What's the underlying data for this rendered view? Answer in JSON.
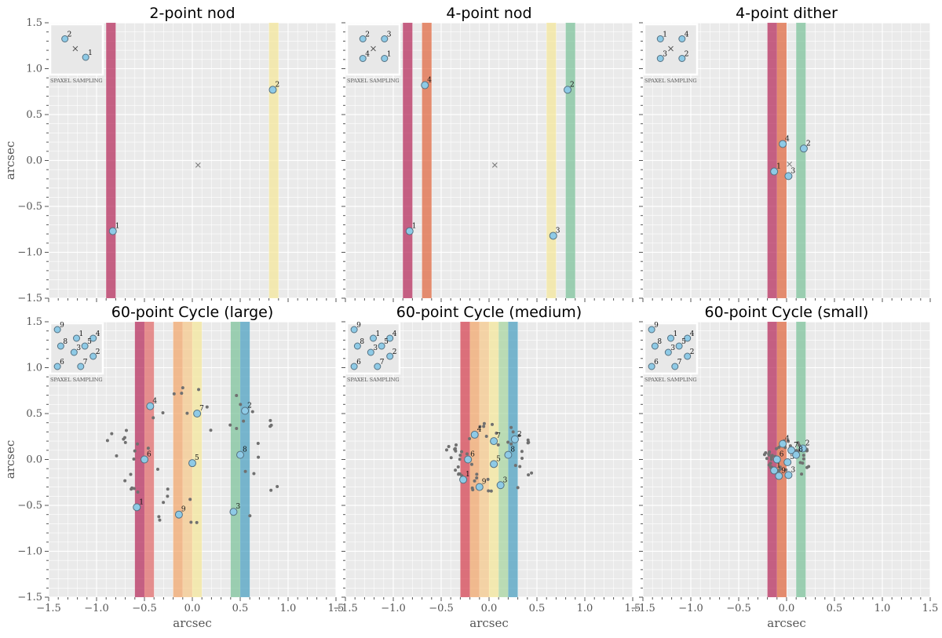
{
  "figure": {
    "xlabel": "arcsec",
    "ylabel": "arcsec",
    "xlim": [
      -1.5,
      1.5
    ],
    "ylim": [
      -1.5,
      1.5
    ],
    "xticks": [
      -1.5,
      -1.0,
      -0.5,
      0.0,
      0.5,
      1.0,
      1.5
    ],
    "yticks": [
      -1.5,
      -1.0,
      -0.5,
      0.0,
      0.5,
      1.0,
      1.5
    ],
    "tick_labels": [
      "−1.5",
      "−1.0",
      "−0.5",
      "0.0",
      "0.5",
      "1.0",
      "1.5"
    ],
    "inset_label": "SPAXEL SAMPLING",
    "background": "#eaeaea",
    "marker_fill": "#8ecae6",
    "cross_color": "#777777",
    "dot_color": "#707070",
    "stripe_colors": [
      "#b5295a",
      "#e0663e",
      "#f3a66b",
      "#f5e79a",
      "#7bc29a",
      "#4aa0c0"
    ]
  },
  "chart_data": [
    {
      "type": "scatter",
      "title": "2-point nod",
      "grid": true,
      "stripes": [
        {
          "x": [
            -0.9,
            -0.8
          ],
          "color": "#b5295a"
        },
        {
          "x": [
            0.8,
            0.9
          ],
          "color": "#f5e79a"
        }
      ],
      "center_marker": [
        0.06,
        -0.05
      ],
      "points": [
        {
          "label": "1",
          "x": -0.83,
          "y": -0.77
        },
        {
          "label": "2",
          "x": 0.84,
          "y": 0.77
        }
      ],
      "inset": {
        "points": [
          {
            "label": "1",
            "u": 0.72,
            "v": 0.72
          },
          {
            "label": "2",
            "u": 0.22,
            "v": 0.25
          }
        ],
        "cross": [
          0.47,
          0.5
        ]
      }
    },
    {
      "type": "scatter",
      "title": "4-point nod",
      "grid": true,
      "stripes": [
        {
          "x": [
            -0.9,
            -0.8
          ],
          "color": "#b5295a"
        },
        {
          "x": [
            -0.7,
            -0.6
          ],
          "color": "#e0663e"
        },
        {
          "x": [
            0.6,
            0.7
          ],
          "color": "#f5e79a"
        },
        {
          "x": [
            0.8,
            0.9
          ],
          "color": "#7bc29a"
        }
      ],
      "center_marker": [
        0.06,
        -0.05
      ],
      "points": [
        {
          "label": "1",
          "x": -0.83,
          "y": -0.77
        },
        {
          "label": "2",
          "x": 0.82,
          "y": 0.77
        },
        {
          "label": "3",
          "x": 0.67,
          "y": -0.82
        },
        {
          "label": "4",
          "x": -0.67,
          "y": 0.82
        }
      ],
      "inset": {
        "points": [
          {
            "label": "1",
            "u": 0.77,
            "v": 0.75
          },
          {
            "label": "2",
            "u": 0.25,
            "v": 0.25
          },
          {
            "label": "3",
            "u": 0.77,
            "v": 0.25
          },
          {
            "label": "4",
            "u": 0.25,
            "v": 0.75
          }
        ],
        "cross": [
          0.5,
          0.5
        ]
      }
    },
    {
      "type": "scatter",
      "title": "4-point dither",
      "grid": true,
      "stripes": [
        {
          "x": [
            -0.2,
            -0.1
          ],
          "color": "#b5295a"
        },
        {
          "x": [
            -0.1,
            0.0
          ],
          "color": "#e0663e"
        },
        {
          "x": [
            0.1,
            0.2
          ],
          "color": "#7bc29a"
        }
      ],
      "center_marker": [
        0.03,
        -0.04
      ],
      "points": [
        {
          "label": "1",
          "x": -0.13,
          "y": -0.12
        },
        {
          "label": "2",
          "x": 0.18,
          "y": 0.13
        },
        {
          "label": "3",
          "x": 0.02,
          "y": -0.17
        },
        {
          "label": "4",
          "x": -0.04,
          "y": 0.18
        }
      ],
      "inset": {
        "points": [
          {
            "label": "1",
            "u": 0.25,
            "v": 0.25
          },
          {
            "label": "2",
            "u": 0.77,
            "v": 0.75
          },
          {
            "label": "3",
            "u": 0.25,
            "v": 0.75
          },
          {
            "label": "4",
            "u": 0.77,
            "v": 0.25
          }
        ],
        "cross": [
          0.5,
          0.5
        ]
      }
    },
    {
      "type": "scatter",
      "title": "60-point Cycle (large)",
      "grid": true,
      "stripes": [
        {
          "x": [
            -0.6,
            -0.5
          ],
          "color": "#b5295a"
        },
        {
          "x": [
            -0.5,
            -0.4
          ],
          "color": "#e26a6a"
        },
        {
          "x": [
            -0.2,
            -0.1
          ],
          "color": "#f3a66b"
        },
        {
          "x": [
            -0.1,
            0.0
          ],
          "color": "#f7c98a"
        },
        {
          "x": [
            0.0,
            0.1
          ],
          "color": "#f5e79a"
        },
        {
          "x": [
            0.4,
            0.5
          ],
          "color": "#7bc29a"
        },
        {
          "x": [
            0.5,
            0.6
          ],
          "color": "#4aa0c0"
        }
      ],
      "cloud_scale": 1.0,
      "points": [
        {
          "label": "1",
          "x": -0.58,
          "y": -0.52
        },
        {
          "label": "2",
          "x": 0.55,
          "y": 0.53
        },
        {
          "label": "3",
          "x": 0.43,
          "y": -0.57
        },
        {
          "label": "4",
          "x": -0.44,
          "y": 0.58
        },
        {
          "label": "5",
          "x": 0.0,
          "y": -0.04
        },
        {
          "label": "6",
          "x": -0.5,
          "y": 0.0
        },
        {
          "label": "7",
          "x": 0.05,
          "y": 0.5
        },
        {
          "label": "8",
          "x": 0.5,
          "y": 0.05
        },
        {
          "label": "9",
          "x": -0.14,
          "y": -0.6
        }
      ],
      "inset": {
        "points": [
          {
            "label": "1",
            "u": 0.5,
            "v": 0.26
          },
          {
            "label": "2",
            "u": 0.9,
            "v": 0.72
          },
          {
            "label": "3",
            "u": 0.44,
            "v": 0.62
          },
          {
            "label": "4",
            "u": 0.9,
            "v": 0.26
          },
          {
            "label": "5",
            "u": 0.7,
            "v": 0.46
          },
          {
            "label": "6",
            "u": 0.04,
            "v": 0.98
          },
          {
            "label": "7",
            "u": 0.6,
            "v": 0.98
          },
          {
            "label": "8",
            "u": 0.12,
            "v": 0.46
          },
          {
            "label": "9",
            "u": 0.04,
            "v": 0.04
          }
        ]
      }
    },
    {
      "type": "scatter",
      "title": "60-point Cycle (medium)",
      "grid": true,
      "stripes": [
        {
          "x": [
            -0.3,
            -0.2
          ],
          "color": "#d6404f"
        },
        {
          "x": [
            -0.2,
            -0.1
          ],
          "color": "#f3a66b"
        },
        {
          "x": [
            -0.1,
            0.0
          ],
          "color": "#f7c98a"
        },
        {
          "x": [
            0.0,
            0.1
          ],
          "color": "#f5e79a"
        },
        {
          "x": [
            0.1,
            0.2
          ],
          "color": "#a8d5a0"
        },
        {
          "x": [
            0.2,
            0.3
          ],
          "color": "#4aa0c0"
        }
      ],
      "cloud_scale": 0.5,
      "points": [
        {
          "label": "1",
          "x": -0.27,
          "y": -0.22
        },
        {
          "label": "2",
          "x": 0.27,
          "y": 0.22
        },
        {
          "label": "3",
          "x": 0.12,
          "y": -0.28
        },
        {
          "label": "4",
          "x": -0.15,
          "y": 0.27
        },
        {
          "label": "5",
          "x": 0.05,
          "y": -0.05
        },
        {
          "label": "6",
          "x": -0.22,
          "y": 0.0
        },
        {
          "label": "7",
          "x": 0.05,
          "y": 0.2
        },
        {
          "label": "8",
          "x": 0.2,
          "y": 0.05
        },
        {
          "label": "9",
          "x": -0.1,
          "y": -0.3
        }
      ],
      "inset": {
        "points": [
          {
            "label": "1",
            "u": 0.5,
            "v": 0.26
          },
          {
            "label": "2",
            "u": 0.9,
            "v": 0.72
          },
          {
            "label": "3",
            "u": 0.44,
            "v": 0.62
          },
          {
            "label": "4",
            "u": 0.9,
            "v": 0.26
          },
          {
            "label": "5",
            "u": 0.7,
            "v": 0.46
          },
          {
            "label": "6",
            "u": 0.04,
            "v": 0.98
          },
          {
            "label": "7",
            "u": 0.6,
            "v": 0.98
          },
          {
            "label": "8",
            "u": 0.12,
            "v": 0.46
          },
          {
            "label": "9",
            "u": 0.04,
            "v": 0.04
          }
        ]
      }
    },
    {
      "type": "scatter",
      "title": "60-point Cycle (small)",
      "grid": true,
      "stripes": [
        {
          "x": [
            -0.2,
            -0.1
          ],
          "color": "#b5295a"
        },
        {
          "x": [
            -0.1,
            0.0
          ],
          "color": "#e0663e"
        },
        {
          "x": [
            0.1,
            0.2
          ],
          "color": "#7bc29a"
        }
      ],
      "cloud_scale": 0.26,
      "points": [
        {
          "label": "1",
          "x": -0.13,
          "y": -0.12
        },
        {
          "label": "2",
          "x": 0.17,
          "y": 0.12
        },
        {
          "label": "3",
          "x": 0.02,
          "y": -0.17
        },
        {
          "label": "4",
          "x": -0.04,
          "y": 0.17
        },
        {
          "label": "5",
          "x": 0.01,
          "y": -0.03
        },
        {
          "label": "6",
          "x": -0.1,
          "y": 0.0
        },
        {
          "label": "7",
          "x": 0.05,
          "y": 0.1
        },
        {
          "label": "8",
          "x": 0.1,
          "y": 0.05
        },
        {
          "label": "9",
          "x": -0.08,
          "y": -0.18
        }
      ],
      "inset": {
        "points": [
          {
            "label": "1",
            "u": 0.5,
            "v": 0.26
          },
          {
            "label": "2",
            "u": 0.9,
            "v": 0.72
          },
          {
            "label": "3",
            "u": 0.44,
            "v": 0.62
          },
          {
            "label": "4",
            "u": 0.9,
            "v": 0.26
          },
          {
            "label": "5",
            "u": 0.7,
            "v": 0.46
          },
          {
            "label": "6",
            "u": 0.04,
            "v": 0.98
          },
          {
            "label": "7",
            "u": 0.6,
            "v": 0.98
          },
          {
            "label": "8",
            "u": 0.12,
            "v": 0.46
          },
          {
            "label": "9",
            "u": 0.04,
            "v": 0.04
          }
        ]
      }
    }
  ]
}
